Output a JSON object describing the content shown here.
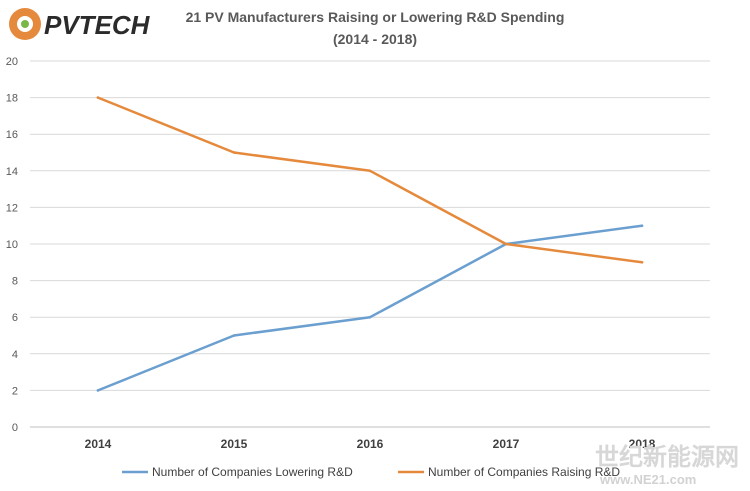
{
  "logo": {
    "text": "PVTECH"
  },
  "watermark": {
    "cn": "世纪新能源网",
    "url": "www.NE21.com"
  },
  "chart_data": {
    "type": "line",
    "title": "21 PV Manufacturers  Raising  or Lowering  R&D Spending",
    "subtitle": "(2014 - 2018)",
    "x": [
      "2014",
      "2015",
      "2016",
      "2017",
      "2018"
    ],
    "ylim": [
      0,
      20
    ],
    "yticks": [
      0,
      2,
      4,
      6,
      8,
      10,
      12,
      14,
      16,
      18,
      20
    ],
    "grid": true,
    "legend": "bottom",
    "series": [
      {
        "name": "Number of Companies Lowering R&D",
        "color": "#6a9fcf",
        "values": [
          2,
          5,
          6,
          10,
          11
        ]
      },
      {
        "name": "Number of Companies Raising R&D",
        "color": "#e58a3c",
        "values": [
          18,
          15,
          14,
          10,
          9
        ]
      }
    ]
  }
}
